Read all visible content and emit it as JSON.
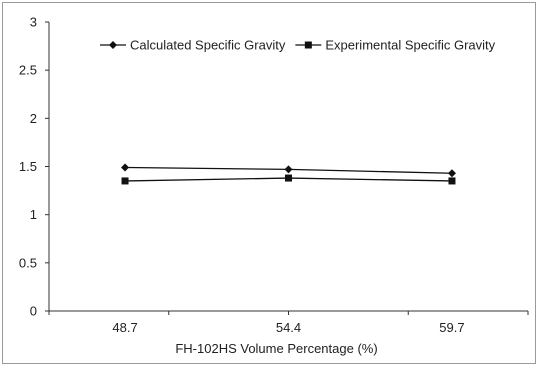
{
  "chart_data": {
    "type": "line",
    "title": "",
    "xlabel": "FH-102HS Volume Percentage (%)",
    "ylabel": "",
    "categories": [
      "48.7",
      "54.4",
      "59.7"
    ],
    "ylim": [
      0,
      3
    ],
    "yticks": [
      "0",
      "0.5",
      "1",
      "1.5",
      "2",
      "2.5",
      "3"
    ],
    "grid": false,
    "legend_position": "top",
    "series": [
      {
        "name": "Calculated Specific Gravity",
        "values": [
          1.49,
          1.47,
          1.43
        ],
        "marker": "diamond",
        "color": "#111111"
      },
      {
        "name": "Experimental Specific Gravity",
        "values": [
          1.35,
          1.38,
          1.35
        ],
        "marker": "square",
        "color": "#111111"
      }
    ]
  }
}
